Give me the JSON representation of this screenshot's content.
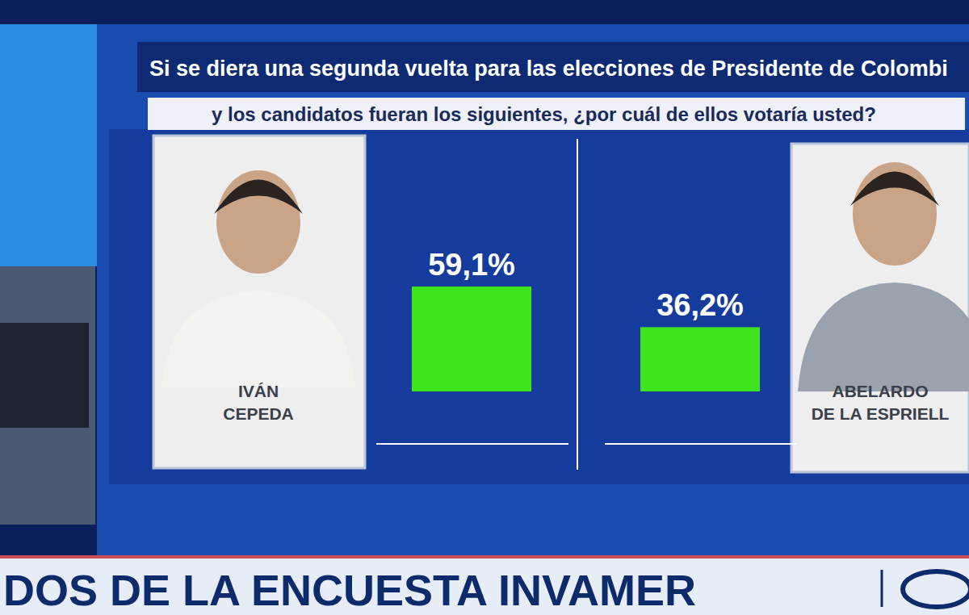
{
  "chart_data": {
    "type": "bar",
    "title": "Si se diera una segunda vuelta para las elecciones de Presidente de Colombi",
    "subtitle": "y los candidatos fueran los siguientes, ¿por cuál de ellos votaría usted?",
    "categories": [
      "IVÁN CEPEDA",
      "ABELARDO DE LA ESPRIELL"
    ],
    "values": [
      59.1,
      36.2
    ],
    "value_labels": [
      "59,1%",
      "36,2%"
    ],
    "color": "#3ee51c",
    "ylim": [
      0,
      100
    ],
    "data_labels": true,
    "tick_labels": false,
    "annotations": [
      "DOS DE LA ENCUESTA INVAMER"
    ]
  }
}
